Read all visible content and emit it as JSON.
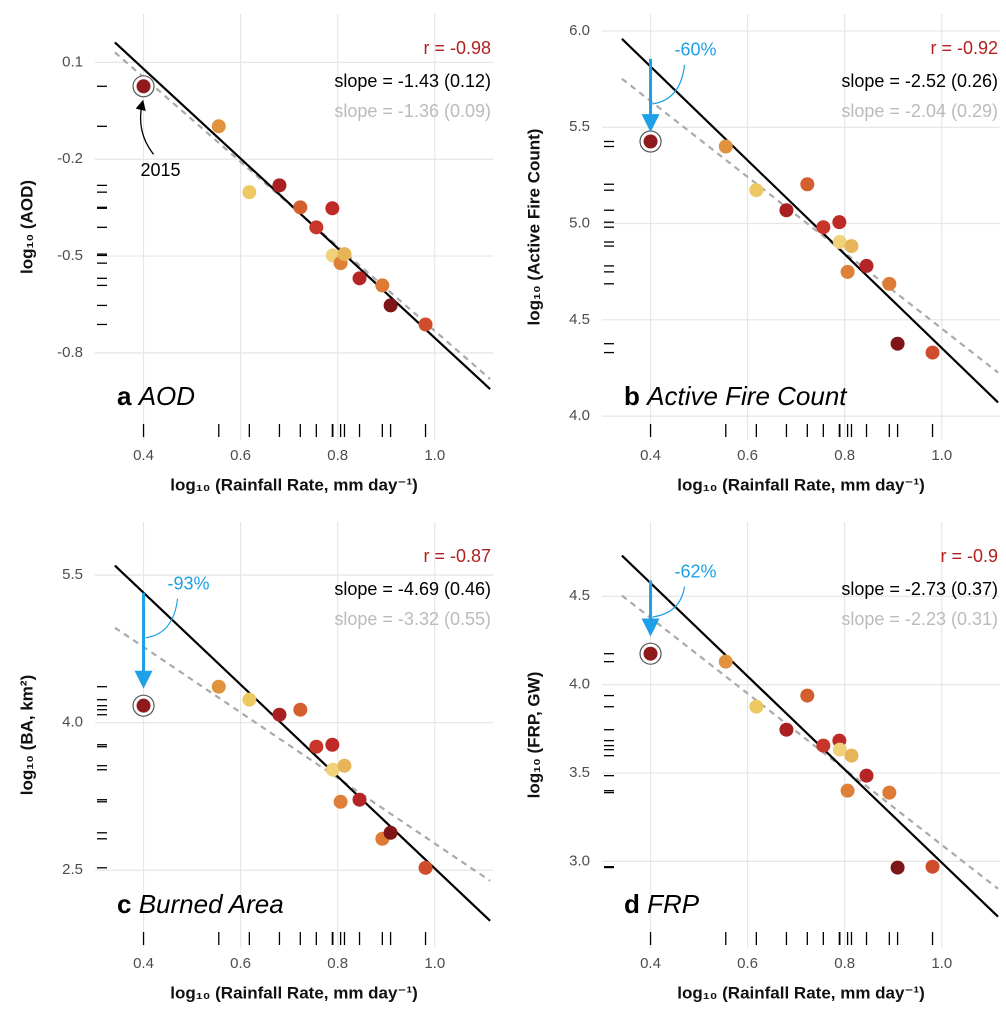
{
  "chart_data": [
    {
      "type": "scatter",
      "panel": "a",
      "label": "AOD",
      "ylabel": "log₁₀ (AOD)",
      "xlabel": "log₁₀ (Rainfall Rate, mm day⁻¹)",
      "r": "r = -0.98",
      "slope": "slope = -1.43 (0.12)",
      "slope_dashed": "slope = -1.36 (0.09)",
      "x": [
        0.4,
        0.555,
        0.618,
        0.68,
        0.723,
        0.756,
        0.789,
        0.79,
        0.806,
        0.814,
        0.845,
        0.892,
        0.909,
        0.981
      ],
      "y": [
        0.026,
        -0.098,
        -0.302,
        -0.281,
        -0.349,
        -0.411,
        -0.352,
        -0.498,
        -0.522,
        -0.494,
        -0.569,
        -0.591,
        -0.653,
        -0.712
      ],
      "colors": [
        "#8e1a1c",
        "#e0923c",
        "#edc863",
        "#a82022",
        "#d35e2e",
        "#c8352a",
        "#c02a26",
        "#f0d27a",
        "#de8038",
        "#e8b458",
        "#b52526",
        "#dc7a36",
        "#7e1618",
        "#cf4d2c"
      ],
      "highlighted": [
        0
      ],
      "fit": {
        "x": [
          0.341,
          1.114
        ],
        "y": [
          0.162,
          -0.912
        ],
        "color": "#000000"
      },
      "fit_dashed": {
        "x": [
          0.341,
          1.114
        ],
        "y": [
          0.131,
          -0.881
        ],
        "color": "#aaaaaa"
      },
      "annotation": {
        "text": "2015"
      },
      "xlim": [
        0.3,
        1.12
      ],
      "ylim": [
        -1.07,
        0.25
      ],
      "xticks": [
        0.4,
        0.6,
        0.8,
        {
          "value": 1,
          "label": "1.0"
        }
      ],
      "yticks": [
        0.1,
        -0.2,
        -0.5,
        -0.8
      ],
      "grid": true
    },
    {
      "type": "scatter",
      "panel": "b",
      "label": "Active Fire Count",
      "ylabel": "log₁₀ (Active Fire Count)",
      "xlabel": "log₁₀ (Rainfall Rate, mm day⁻¹)",
      "r": "r = -0.92",
      "slope": "slope = -2.52 (0.26)",
      "slope_dashed": "slope = -2.04 (0.29)",
      "x": [
        0.4,
        0.555,
        0.618,
        0.68,
        0.723,
        0.756,
        0.789,
        0.79,
        0.806,
        0.814,
        0.845,
        0.892,
        0.909,
        0.981
      ],
      "y": [
        5.426,
        5.4,
        5.173,
        5.069,
        5.204,
        4.981,
        5.007,
        4.904,
        4.749,
        4.883,
        4.78,
        4.687,
        4.376,
        4.33
      ],
      "colors": [
        "#8e1a1c",
        "#e0923c",
        "#edc863",
        "#a82022",
        "#d35e2e",
        "#c8352a",
        "#c02a26",
        "#f0d27a",
        "#de8038",
        "#e8b458",
        "#b52526",
        "#dc7a36",
        "#7e1618",
        "#cf4d2c"
      ],
      "highlighted": [
        0
      ],
      "fit": {
        "x": [
          0.341,
          1.116
        ],
        "y": [
          5.959,
          4.071
        ],
        "color": "#000000"
      },
      "fit_dashed": {
        "x": [
          0.341,
          1.116
        ],
        "y": [
          5.752,
          4.226
        ],
        "color": "#aaaaaa"
      },
      "change": {
        "text": "-60%",
        "x": 0.4,
        "y": [
          5.855,
          5.49
        ],
        "color": "#1ea0e6"
      },
      "xlim": [
        0.3,
        1.12
      ],
      "ylim": [
        3.876,
        6.088
      ],
      "xticks": [
        0.4,
        0.6,
        0.8,
        {
          "value": 1,
          "label": "1.0"
        }
      ],
      "yticks": [
        {
          "value": 6,
          "label": "6.0"
        },
        5.5,
        {
          "value": 5,
          "label": "5.0"
        },
        4.5,
        {
          "value": 4,
          "label": "4.0"
        }
      ],
      "grid": true
    },
    {
      "type": "scatter",
      "panel": "c",
      "label": "Burned Area",
      "ylabel": "log₁₀ (BA, km²)",
      "xlabel": "log₁₀ (Rainfall Rate, mm day⁻¹)",
      "r": "r = -0.87",
      "slope": "slope = -4.69 (0.46)",
      "slope_dashed": "slope = -3.32 (0.55)",
      "x": [
        0.4,
        0.555,
        0.618,
        0.68,
        0.723,
        0.756,
        0.789,
        0.79,
        0.806,
        0.814,
        0.845,
        0.892,
        0.909,
        0.981
      ],
      "y": [
        4.173,
        4.366,
        4.234,
        4.081,
        4.132,
        3.756,
        3.776,
        3.522,
        3.196,
        3.563,
        3.217,
        2.82,
        2.881,
        2.525
      ],
      "colors": [
        "#8e1a1c",
        "#e0923c",
        "#edc863",
        "#a82022",
        "#d35e2e",
        "#c8352a",
        "#c02a26",
        "#f0d27a",
        "#de8038",
        "#e8b458",
        "#b52526",
        "#dc7a36",
        "#7e1618",
        "#cf4d2c"
      ],
      "highlighted": [
        0
      ],
      "fit": {
        "x": [
          0.341,
          1.114
        ],
        "y": [
          5.597,
          1.986
        ],
        "color": "#000000"
      },
      "fit_dashed": {
        "x": [
          0.341,
          1.114
        ],
        "y": [
          4.966,
          2.393
        ],
        "color": "#aaaaaa"
      },
      "change": {
        "text": "-93%",
        "x": 0.4,
        "y": [
          5.32,
          4.376
        ],
        "color": "#1ea0e6"
      },
      "xlim": [
        0.3,
        1.12
      ],
      "ylim": [
        1.71,
        6.04
      ],
      "xticks": [
        0.4,
        0.6,
        0.8,
        {
          "value": 1,
          "label": "1.0"
        }
      ],
      "yticks": [
        5.5,
        {
          "value": 4,
          "label": "4.0"
        },
        2.5
      ],
      "grid": true
    },
    {
      "type": "scatter",
      "panel": "d",
      "label": "FRP",
      "ylabel": "log₁₀ (FRP, GW)",
      "xlabel": "log₁₀ (Rainfall Rate, mm day⁻¹)",
      "r": "r = -0.9",
      "slope": "slope = -2.73 (0.37)",
      "slope_dashed": "slope = -2.23 (0.31)",
      "x": [
        0.4,
        0.555,
        0.618,
        0.68,
        0.723,
        0.756,
        0.789,
        0.79,
        0.806,
        0.814,
        0.845,
        0.892,
        0.909,
        0.981
      ],
      "y": [
        4.175,
        4.13,
        3.875,
        3.745,
        3.938,
        3.655,
        3.683,
        3.632,
        3.4,
        3.598,
        3.485,
        3.389,
        2.965,
        2.97
      ],
      "colors": [
        "#8e1a1c",
        "#e0923c",
        "#edc863",
        "#a82022",
        "#d35e2e",
        "#c8352a",
        "#c02a26",
        "#f0d27a",
        "#de8038",
        "#e8b458",
        "#b52526",
        "#dc7a36",
        "#7e1618",
        "#cf4d2c"
      ],
      "highlighted": [
        0
      ],
      "fit": {
        "x": [
          0.341,
          1.116
        ],
        "y": [
          4.73,
          2.687
        ],
        "color": "#000000"
      },
      "fit_dashed": {
        "x": [
          0.341,
          1.116
        ],
        "y": [
          4.504,
          2.845
        ],
        "color": "#aaaaaa"
      },
      "change": {
        "text": "-62%",
        "x": 0.4,
        "y": [
          4.589,
          4.289
        ],
        "color": "#1ea0e6"
      },
      "xlim": [
        0.3,
        1.12
      ],
      "ylim": [
        2.51,
        4.92
      ],
      "xticks": [
        0.4,
        0.6,
        0.8,
        {
          "value": 1,
          "label": "1.0"
        }
      ],
      "yticks": [
        4.5,
        {
          "value": 4,
          "label": "4.0"
        },
        3.5,
        {
          "value": 3,
          "label": "3.0"
        }
      ],
      "grid": true
    }
  ]
}
